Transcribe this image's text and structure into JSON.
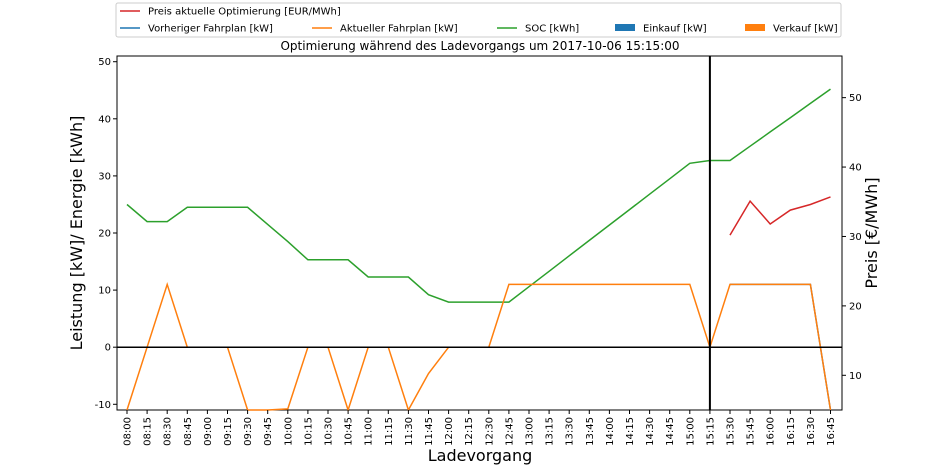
{
  "chart_data": {
    "type": "line",
    "title": "Optimierung während des Ladevorgangs um 2017-10-06 15:15:00",
    "xlabel": "Ladevorgang",
    "ylabel": "Leistung [kW]/ Energie [kWh]",
    "y2label": "Preis [€/MWh]",
    "ylim": [
      -11,
      51
    ],
    "y2lim": [
      5,
      56
    ],
    "yticks": [
      -10,
      0,
      10,
      20,
      30,
      40,
      50
    ],
    "y2ticks": [
      10,
      20,
      30,
      40,
      50
    ],
    "categories": [
      "08:00",
      "08:15",
      "08:30",
      "08:45",
      "09:00",
      "09:15",
      "09:30",
      "09:45",
      "10:00",
      "10:15",
      "10:30",
      "10:45",
      "11:00",
      "11:15",
      "11:30",
      "11:45",
      "12:00",
      "12:15",
      "12:30",
      "12:45",
      "13:00",
      "13:15",
      "13:30",
      "13:45",
      "14:00",
      "14:15",
      "14:30",
      "14:45",
      "15:00",
      "15:15",
      "15:30",
      "15:45",
      "16:00",
      "16:15",
      "16:30",
      "16:45"
    ],
    "current_time_marker": "15:15",
    "legend": {
      "placement": "top",
      "entries": [
        {
          "name": "Preis aktuelle Optimierung [EUR/MWh]",
          "color": "#d62728",
          "kind": "line"
        },
        {
          "name": "Vorheriger Fahrplan [kW]",
          "color": "#1f77b4",
          "kind": "line"
        },
        {
          "name": "Aktueller Fahrplan [kW]",
          "color": "#ff7f0e",
          "kind": "line"
        },
        {
          "name": "SOC [kWh]",
          "color": "#2ca02c",
          "kind": "line"
        },
        {
          "name": "Einkauf [kW]",
          "color": "#1f77b4",
          "kind": "bar"
        },
        {
          "name": "Verkauf [kW]",
          "color": "#ff7f0e",
          "kind": "bar"
        }
      ]
    },
    "series": [
      {
        "name": "SOC [kWh]",
        "axis": "left",
        "color": "#2ca02c",
        "values": [
          25,
          22,
          22,
          24.5,
          24.5,
          24.5,
          24.5,
          21.5,
          18.5,
          15.3,
          15.3,
          15.3,
          12.3,
          12.3,
          12.3,
          9.2,
          7.9,
          7.9,
          7.9,
          7.9,
          10.6,
          13.3,
          16.0,
          18.7,
          21.4,
          24.1,
          26.8,
          29.5,
          32.2,
          32.7,
          32.7,
          35.2,
          37.7,
          40.2,
          42.7,
          45.2
        ]
      },
      {
        "name": "Aktueller Fahrplan [kW]",
        "axis": "left",
        "color": "#ff7f0e",
        "values": [
          -11,
          0,
          11,
          0,
          0,
          0,
          -11,
          -11,
          -10.8,
          0,
          0,
          -11,
          0,
          0,
          -11,
          -4.6,
          0,
          0,
          0,
          11,
          11,
          11,
          11,
          11,
          11,
          11,
          11,
          11,
          11,
          0,
          11,
          11,
          11,
          11,
          11,
          -11
        ]
      },
      {
        "name": "Vorheriger Fahrplan [kW]",
        "axis": "left",
        "color": "#1f77b4",
        "values": [
          null,
          null,
          null,
          null,
          null,
          null,
          null,
          null,
          null,
          null,
          null,
          null,
          null,
          null,
          null,
          null,
          null,
          null,
          null,
          null,
          null,
          null,
          null,
          null,
          null,
          null,
          null,
          null,
          null,
          null,
          11,
          11,
          11,
          11,
          11,
          -11
        ]
      },
      {
        "name": "Preis aktuelle Optimierung [EUR/MWh]",
        "axis": "right",
        "color": "#d62728",
        "values": [
          null,
          null,
          null,
          null,
          null,
          null,
          null,
          null,
          null,
          null,
          null,
          null,
          null,
          null,
          null,
          null,
          null,
          null,
          null,
          null,
          null,
          null,
          null,
          null,
          null,
          null,
          null,
          null,
          null,
          null,
          30.2,
          35.1,
          31.8,
          33.8,
          34.6,
          35.7
        ]
      }
    ]
  }
}
